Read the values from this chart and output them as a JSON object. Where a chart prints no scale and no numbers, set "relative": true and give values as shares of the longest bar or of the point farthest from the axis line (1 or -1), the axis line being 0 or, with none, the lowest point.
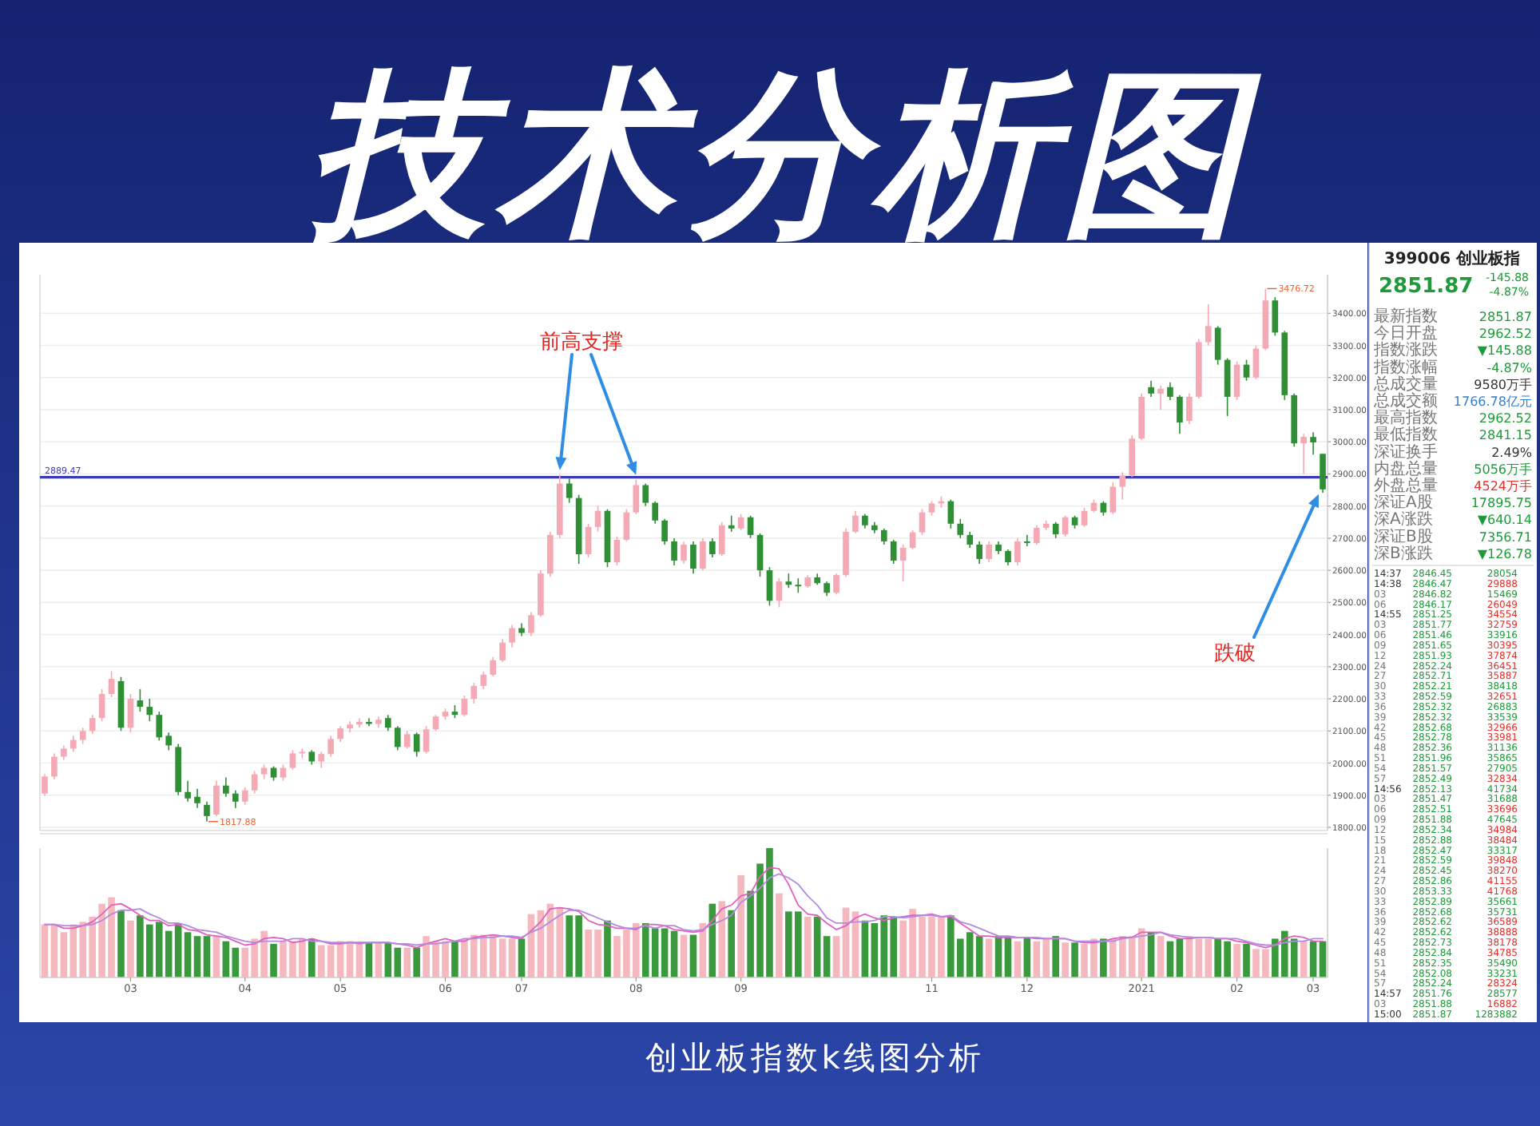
{
  "chart_data": [
    {
      "type": "candlestick",
      "title": "技术分析图",
      "categories": [
        null,
        null,
        null,
        null,
        null,
        null,
        null,
        null,
        null,
        null,
        null,
        null,
        null,
        null,
        null,
        null,
        null,
        null,
        null,
        null,
        null,
        null,
        null,
        null,
        null,
        null,
        null,
        null,
        null,
        null,
        null,
        null,
        null,
        null,
        null,
        null,
        null,
        null,
        null,
        null,
        null,
        null,
        null,
        null,
        null,
        null,
        null,
        null,
        null,
        null,
        null,
        null,
        null,
        null,
        null,
        null,
        null,
        null,
        null,
        null,
        null,
        null,
        null,
        null,
        null,
        null,
        null,
        null,
        null,
        null,
        null,
        null,
        null,
        null,
        null,
        null,
        null,
        null,
        null,
        null,
        null,
        null,
        null,
        null,
        null,
        null,
        null,
        null,
        null,
        null,
        null,
        null,
        null,
        null,
        null,
        null,
        null,
        null,
        null,
        null,
        null,
        null,
        null,
        null,
        null,
        null,
        null,
        null,
        null,
        null,
        null,
        null,
        null,
        null,
        null,
        null,
        null,
        null,
        null,
        null,
        null,
        null,
        null,
        null,
        null,
        null,
        null,
        null,
        null,
        null,
        null,
        null,
        null,
        null,
        null
      ],
      "ohlc": [
        [
          1905,
          1965,
          1898,
          1958
        ],
        [
          1958,
          2030,
          1950,
          2020
        ],
        [
          2020,
          2055,
          2010,
          2045
        ],
        [
          2045,
          2085,
          2035,
          2072
        ],
        [
          2072,
          2110,
          2060,
          2100
        ],
        [
          2100,
          2150,
          2090,
          2140
        ],
        [
          2140,
          2230,
          2130,
          2215
        ],
        [
          2215,
          2286,
          2205,
          2262
        ],
        [
          2255,
          2268,
          2100,
          2110
        ],
        [
          2110,
          2215,
          2095,
          2200
        ],
        [
          2195,
          2230,
          2160,
          2175
        ],
        [
          2175,
          2200,
          2130,
          2150
        ],
        [
          2150,
          2160,
          2070,
          2080
        ],
        [
          2085,
          2095,
          2040,
          2055
        ],
        [
          2050,
          2060,
          1900,
          1910
        ],
        [
          1910,
          1945,
          1880,
          1890
        ],
        [
          1895,
          1920,
          1860,
          1875
        ],
        [
          1870,
          1880,
          1817.88,
          1835
        ],
        [
          1840,
          1945,
          1835,
          1930
        ],
        [
          1930,
          1955,
          1895,
          1905
        ],
        [
          1905,
          1915,
          1860,
          1880
        ],
        [
          1880,
          1925,
          1870,
          1915
        ],
        [
          1915,
          1975,
          1905,
          1965
        ],
        [
          1965,
          1995,
          1950,
          1985
        ],
        [
          1985,
          1990,
          1945,
          1955
        ],
        [
          1955,
          1995,
          1945,
          1985
        ],
        [
          1985,
          2040,
          1980,
          2030
        ],
        [
          2030,
          2045,
          2015,
          2035
        ],
        [
          2035,
          2040,
          1995,
          2005
        ],
        [
          2005,
          2035,
          1985,
          2028
        ],
        [
          2028,
          2085,
          2020,
          2075
        ],
        [
          2075,
          2115,
          2065,
          2108
        ],
        [
          2108,
          2130,
          2095,
          2120
        ],
        [
          2120,
          2140,
          2110,
          2128
        ],
        [
          2128,
          2140,
          2115,
          2122
        ],
        [
          2122,
          2145,
          2110,
          2135
        ],
        [
          2140,
          2150,
          2100,
          2110
        ],
        [
          2110,
          2115,
          2040,
          2050
        ],
        [
          2050,
          2100,
          2045,
          2090
        ],
        [
          2090,
          2095,
          2020,
          2035
        ],
        [
          2035,
          2115,
          2030,
          2105
        ],
        [
          2105,
          2150,
          2100,
          2145
        ],
        [
          2145,
          2170,
          2135,
          2160
        ],
        [
          2160,
          2180,
          2140,
          2150
        ],
        [
          2150,
          2210,
          2145,
          2200
        ],
        [
          2200,
          2250,
          2185,
          2240
        ],
        [
          2240,
          2285,
          2230,
          2275
        ],
        [
          2275,
          2330,
          2270,
          2320
        ],
        [
          2320,
          2385,
          2315,
          2375
        ],
        [
          2375,
          2430,
          2360,
          2420
        ],
        [
          2420,
          2435,
          2395,
          2405
        ],
        [
          2405,
          2470,
          2395,
          2460
        ],
        [
          2460,
          2600,
          2455,
          2590
        ],
        [
          2590,
          2720,
          2580,
          2710
        ],
        [
          2710,
          2897,
          2700,
          2870
        ],
        [
          2870,
          2885,
          2810,
          2825
        ],
        [
          2825,
          2835,
          2620,
          2650
        ],
        [
          2650,
          2745,
          2640,
          2735
        ],
        [
          2735,
          2800,
          2720,
          2785
        ],
        [
          2785,
          2790,
          2610,
          2625
        ],
        [
          2625,
          2705,
          2615,
          2695
        ],
        [
          2695,
          2790,
          2690,
          2780
        ],
        [
          2780,
          2882,
          2775,
          2865
        ],
        [
          2865,
          2870,
          2800,
          2810
        ],
        [
          2810,
          2815,
          2745,
          2755
        ],
        [
          2755,
          2760,
          2680,
          2690
        ],
        [
          2690,
          2700,
          2615,
          2630
        ],
        [
          2630,
          2690,
          2620,
          2680
        ],
        [
          2680,
          2690,
          2590,
          2605
        ],
        [
          2605,
          2700,
          2600,
          2690
        ],
        [
          2690,
          2700,
          2640,
          2650
        ],
        [
          2650,
          2750,
          2645,
          2740
        ],
        [
          2740,
          2770,
          2720,
          2730
        ],
        [
          2730,
          2775,
          2725,
          2765
        ],
        [
          2765,
          2770,
          2700,
          2710
        ],
        [
          2710,
          2715,
          2580,
          2600
        ],
        [
          2600,
          2610,
          2490,
          2505
        ],
        [
          2505,
          2575,
          2485,
          2565
        ],
        [
          2565,
          2590,
          2545,
          2555
        ],
        [
          2555,
          2575,
          2530,
          2550
        ],
        [
          2550,
          2585,
          2545,
          2578
        ],
        [
          2578,
          2590,
          2555,
          2560
        ],
        [
          2560,
          2565,
          2520,
          2530
        ],
        [
          2530,
          2590,
          2525,
          2585
        ],
        [
          2585,
          2730,
          2580,
          2720
        ],
        [
          2720,
          2785,
          2715,
          2770
        ],
        [
          2770,
          2775,
          2730,
          2740
        ],
        [
          2740,
          2750,
          2715,
          2725
        ],
        [
          2725,
          2730,
          2680,
          2690
        ],
        [
          2690,
          2695,
          2620,
          2630
        ],
        [
          2630,
          2680,
          2565,
          2670
        ],
        [
          2670,
          2725,
          2665,
          2718
        ],
        [
          2718,
          2790,
          2710,
          2780
        ],
        [
          2780,
          2815,
          2770,
          2808
        ],
        [
          2808,
          2830,
          2795,
          2815
        ],
        [
          2815,
          2820,
          2730,
          2745
        ],
        [
          2745,
          2760,
          2700,
          2710
        ],
        [
          2710,
          2720,
          2670,
          2680
        ],
        [
          2680,
          2690,
          2620,
          2635
        ],
        [
          2635,
          2690,
          2625,
          2680
        ],
        [
          2680,
          2690,
          2650,
          2660
        ],
        [
          2660,
          2665,
          2615,
          2625
        ],
        [
          2625,
          2700,
          2615,
          2690
        ],
        [
          2690,
          2710,
          2675,
          2685
        ],
        [
          2685,
          2740,
          2680,
          2732
        ],
        [
          2732,
          2755,
          2725,
          2745
        ],
        [
          2745,
          2750,
          2700,
          2712
        ],
        [
          2712,
          2770,
          2705,
          2765
        ],
        [
          2765,
          2770,
          2730,
          2740
        ],
        [
          2740,
          2795,
          2735,
          2785
        ],
        [
          2785,
          2820,
          2780,
          2810
        ],
        [
          2810,
          2815,
          2770,
          2780
        ],
        [
          2780,
          2875,
          2775,
          2860
        ],
        [
          2860,
          2905,
          2820,
          2895
        ],
        [
          2895,
          3020,
          2890,
          3010
        ],
        [
          3010,
          3150,
          3005,
          3140
        ],
        [
          3170,
          3190,
          3140,
          3150
        ],
        [
          3150,
          3175,
          3100,
          3165
        ],
        [
          3170,
          3185,
          3130,
          3140
        ],
        [
          3140,
          3145,
          3025,
          3060
        ],
        [
          3065,
          3150,
          3055,
          3140
        ],
        [
          3140,
          3320,
          3135,
          3310
        ],
        [
          3310,
          3428,
          3300,
          3360
        ],
        [
          3355,
          3360,
          3240,
          3255
        ],
        [
          3255,
          3260,
          3080,
          3140
        ],
        [
          3140,
          3250,
          3130,
          3240
        ],
        [
          3240,
          3255,
          3190,
          3200
        ],
        [
          3200,
          3300,
          3195,
          3290
        ],
        [
          3290,
          3476.72,
          3285,
          3440
        ],
        [
          3440,
          3450,
          3330,
          3340
        ],
        [
          3340,
          3345,
          3130,
          3145
        ],
        [
          3145,
          3150,
          2985,
          2995
        ],
        [
          2995,
          3025,
          2900,
          3015
        ],
        [
          3015,
          3030,
          2960,
          2998
        ],
        [
          2962.52,
          2962.52,
          2841.15,
          2851.87
        ]
      ],
      "colors": [
        "#f4a9b5",
        "#f4a9b5",
        "#f4a9b5",
        "#f4a9b5",
        "#f4a9b5",
        "#f4a9b5",
        "#f4a9b5",
        "#f4a9b5",
        "#2f8f35",
        "#f4a9b5",
        "#2f8f35",
        "#2f8f35",
        "#2f8f35",
        "#2f8f35",
        "#2f8f35",
        "#2f8f35",
        "#2f8f35",
        "#2f8f35",
        "#f4a9b5",
        "#2f8f35",
        "#2f8f35",
        "#f4a9b5",
        "#f4a9b5",
        "#f4a9b5",
        "#2f8f35",
        "#f4a9b5",
        "#f4a9b5",
        "#f4a9b5",
        "#2f8f35",
        "#f4a9b5",
        "#f4a9b5",
        "#f4a9b5",
        "#f4a9b5",
        "#f4a9b5",
        "#2f8f35",
        "#f4a9b5",
        "#2f8f35",
        "#2f8f35",
        "#f4a9b5",
        "#2f8f35",
        "#f4a9b5",
        "#f4a9b5",
        "#f4a9b5",
        "#2f8f35",
        "#f4a9b5",
        "#f4a9b5",
        "#f4a9b5",
        "#f4a9b5",
        "#f4a9b5",
        "#f4a9b5",
        "#2f8f35",
        "#f4a9b5",
        "#f4a9b5",
        "#f4a9b5",
        "#f4a9b5",
        "#2f8f35",
        "#2f8f35",
        "#f4a9b5",
        "#f4a9b5",
        "#2f8f35",
        "#f4a9b5",
        "#f4a9b5",
        "#f4a9b5",
        "#2f8f35",
        "#2f8f35",
        "#2f8f35",
        "#2f8f35",
        "#f4a9b5",
        "#2f8f35",
        "#f4a9b5",
        "#2f8f35",
        "#f4a9b5",
        "#2f8f35",
        "#f4a9b5",
        "#2f8f35",
        "#2f8f35",
        "#2f8f35",
        "#f4a9b5",
        "#2f8f35",
        "#2f8f35",
        "#f4a9b5",
        "#2f8f35",
        "#2f8f35",
        "#f4a9b5",
        "#f4a9b5",
        "#f4a9b5",
        "#2f8f35",
        "#2f8f35",
        "#2f8f35",
        "#2f8f35",
        "#f4a9b5",
        "#f4a9b5",
        "#f4a9b5",
        "#f4a9b5",
        "#f4a9b5",
        "#2f8f35",
        "#2f8f35",
        "#2f8f35",
        "#2f8f35",
        "#f4a9b5",
        "#2f8f35",
        "#2f8f35",
        "#f4a9b5",
        "#2f8f35",
        "#f4a9b5",
        "#f4a9b5",
        "#2f8f35",
        "#f4a9b5",
        "#2f8f35",
        "#f4a9b5",
        "#f4a9b5",
        "#2f8f35",
        "#f4a9b5",
        "#f4a9b5",
        "#f4a9b5",
        "#f4a9b5",
        "#2f8f35",
        "#f4a9b5",
        "#2f8f35",
        "#2f8f35",
        "#f4a9b5",
        "#f4a9b5",
        "#f4a9b5",
        "#2f8f35",
        "#2f8f35",
        "#f4a9b5",
        "#2f8f35",
        "#f4a9b5",
        "#f4a9b5",
        "#2f8f35",
        "#2f8f35",
        "#2f8f35",
        "#f4a9b5",
        "#2f8f35",
        "#2f8f35"
      ],
      "ylim": [
        1790,
        3520
      ],
      "yticks": [
        {
          "value": 1800,
          "label": "1800.00"
        },
        {
          "value": 1900,
          "label": "1900.00"
        },
        {
          "value": 2000,
          "label": "2000.00"
        },
        {
          "value": 2100,
          "label": "2100.00"
        },
        {
          "value": 2200,
          "label": "2200.00"
        },
        {
          "value": 2300,
          "label": "2300.00"
        },
        {
          "value": 2400,
          "label": "2400.00"
        },
        {
          "value": 2500,
          "label": "2500.00"
        },
        {
          "value": 2600,
          "label": "2600.00"
        },
        {
          "value": 2700,
          "label": "2700.00"
        },
        {
          "value": 2800,
          "label": "2800.00"
        },
        {
          "value": 2900,
          "label": "2900.00"
        },
        {
          "value": 3000,
          "label": "3000.00"
        },
        {
          "value": 3100,
          "label": "3100.00"
        },
        {
          "value": 3200,
          "label": "3200.00"
        },
        {
          "value": 3300,
          "label": "3300.00"
        },
        {
          "value": 3400,
          "label": "3400.00"
        }
      ],
      "grid": "y",
      "tick_labels": "y",
      "ref_lines": [
        {
          "axis": "y",
          "value": 2889.47,
          "label": "2889.47",
          "color": "#3a3ab4"
        }
      ],
      "annotations": [
        "前高支撑",
        "跌破",
        "创业板指数k线图分析",
        "3476.72",
        "1817.88"
      ]
    },
    {
      "type": "bar",
      "relative": true,
      "tick_labels": "x",
      "categories": [
        null,
        null,
        null,
        null,
        null,
        null,
        null,
        null,
        null,
        "03",
        null,
        null,
        null,
        null,
        null,
        null,
        null,
        null,
        null,
        null,
        null,
        "04",
        null,
        null,
        null,
        null,
        null,
        null,
        null,
        null,
        null,
        "05",
        null,
        null,
        null,
        null,
        null,
        null,
        null,
        null,
        null,
        null,
        "06",
        null,
        null,
        null,
        null,
        null,
        null,
        null,
        "07",
        null,
        null,
        null,
        null,
        null,
        null,
        null,
        null,
        null,
        null,
        null,
        "08",
        null,
        null,
        null,
        null,
        null,
        null,
        null,
        null,
        null,
        null,
        "09",
        null,
        null,
        null,
        null,
        null,
        null,
        null,
        null,
        null,
        null,
        null,
        null,
        null,
        null,
        null,
        null,
        null,
        null,
        null,
        "11",
        null,
        null,
        null,
        null,
        null,
        null,
        null,
        null,
        null,
        "12",
        null,
        null,
        null,
        null,
        null,
        null,
        null,
        null,
        null,
        null,
        null,
        "2021",
        null,
        null,
        null,
        null,
        null,
        null,
        null,
        null,
        null,
        "02",
        null,
        null,
        null,
        null,
        null,
        null,
        null,
        "03",
        null
      ],
      "series": [
        {
          "type": "bar",
          "colors": [
            "#f5b8be",
            "#f5b8be",
            "#f5b8be",
            "#f5b8be",
            "#f5b8be",
            "#f5b8be",
            "#f5b8be",
            "#f5b8be",
            "#3a993c",
            "#f5b8be",
            "#3a993c",
            "#3a993c",
            "#3a993c",
            "#3a993c",
            "#3a993c",
            "#3a993c",
            "#3a993c",
            "#3a993c",
            "#f5b8be",
            "#3a993c",
            "#3a993c",
            "#f5b8be",
            "#f5b8be",
            "#f5b8be",
            "#3a993c",
            "#f5b8be",
            "#f5b8be",
            "#f5b8be",
            "#3a993c",
            "#f5b8be",
            "#f5b8be",
            "#f5b8be",
            "#f5b8be",
            "#f5b8be",
            "#3a993c",
            "#f5b8be",
            "#3a993c",
            "#3a993c",
            "#f5b8be",
            "#3a993c",
            "#f5b8be",
            "#f5b8be",
            "#f5b8be",
            "#3a993c",
            "#f5b8be",
            "#f5b8be",
            "#f5b8be",
            "#f5b8be",
            "#f5b8be",
            "#f5b8be",
            "#3a993c",
            "#f5b8be",
            "#f5b8be",
            "#f5b8be",
            "#f5b8be",
            "#3a993c",
            "#3a993c",
            "#f5b8be",
            "#f5b8be",
            "#3a993c",
            "#f5b8be",
            "#f5b8be",
            "#f5b8be",
            "#3a993c",
            "#3a993c",
            "#3a993c",
            "#3a993c",
            "#f5b8be",
            "#3a993c",
            "#f5b8be",
            "#3a993c",
            "#f5b8be",
            "#3a993c",
            "#f5b8be",
            "#3a993c",
            "#3a993c",
            "#3a993c",
            "#f5b8be",
            "#3a993c",
            "#3a993c",
            "#f5b8be",
            "#3a993c",
            "#3a993c",
            "#f5b8be",
            "#f5b8be",
            "#f5b8be",
            "#3a993c",
            "#3a993c",
            "#3a993c",
            "#3a993c",
            "#f5b8be",
            "#f5b8be",
            "#f5b8be",
            "#f5b8be",
            "#f5b8be",
            "#3a993c",
            "#3a993c",
            "#3a993c",
            "#3a993c",
            "#f5b8be",
            "#3a993c",
            "#3a993c",
            "#f5b8be",
            "#3a993c",
            "#f5b8be",
            "#f5b8be",
            "#3a993c",
            "#f5b8be",
            "#3a993c",
            "#f5b8be",
            "#f5b8be",
            "#3a993c",
            "#f5b8be",
            "#f5b8be",
            "#f5b8be",
            "#f5b8be",
            "#3a993c",
            "#f5b8be",
            "#3a993c",
            "#3a993c",
            "#f5b8be",
            "#f5b8be",
            "#f5b8be",
            "#3a993c",
            "#3a993c",
            "#f5b8be",
            "#3a993c",
            "#f5b8be",
            "#f5b8be",
            "#3a993c",
            "#3a993c",
            "#3a993c",
            "#f5b8be",
            "#3a993c",
            "#3a993c"
          ],
          "values": [
            0.41,
            0.41,
            0.35,
            0.41,
            0.43,
            0.47,
            0.57,
            0.62,
            0.52,
            0.44,
            0.48,
            0.41,
            0.43,
            0.36,
            0.42,
            0.35,
            0.32,
            0.32,
            0.32,
            0.28,
            0.23,
            0.23,
            0.3,
            0.36,
            0.26,
            0.28,
            0.28,
            0.3,
            0.3,
            0.25,
            0.25,
            0.28,
            0.28,
            0.26,
            0.27,
            0.27,
            0.27,
            0.23,
            0.23,
            0.23,
            0.32,
            0.28,
            0.28,
            0.28,
            0.3,
            0.33,
            0.33,
            0.33,
            0.3,
            0.3,
            0.3,
            0.49,
            0.52,
            0.57,
            0.54,
            0.48,
            0.48,
            0.37,
            0.37,
            0.44,
            0.32,
            0.37,
            0.42,
            0.42,
            0.38,
            0.38,
            0.36,
            0.33,
            0.33,
            0.42,
            0.57,
            0.59,
            0.52,
            0.79,
            0.67,
            0.88,
            1,
            0.65,
            0.51,
            0.51,
            0.47,
            0.47,
            0.32,
            0.32,
            0.54,
            0.51,
            0.44,
            0.42,
            0.48,
            0.47,
            0.44,
            0.53,
            0.47,
            0.47,
            0.47,
            0.48,
            0.3,
            0.35,
            0.32,
            0.3,
            0.32,
            0.32,
            0.28,
            0.31,
            0.28,
            0.3,
            0.32,
            0.27,
            0.27,
            0.26,
            0.3,
            0.3,
            0.3,
            0.32,
            0.32,
            0.38,
            0.35,
            0.32,
            0.28,
            0.3,
            0.32,
            0.3,
            0.3,
            0.3,
            0.28,
            0.26,
            0.26,
            0.22,
            0.22,
            0.3,
            0.36,
            0.3,
            0.28,
            0.28,
            0.28
          ]
        },
        {
          "type": "line",
          "color": "#e060c0",
          "values": [
            0.41,
            0.41,
            0.38,
            0.38,
            0.4,
            0.43,
            0.49,
            0.56,
            0.57,
            0.53,
            0.48,
            0.44,
            0.44,
            0.4,
            0.41,
            0.37,
            0.36,
            0.33,
            0.32,
            0.31,
            0.28,
            0.25,
            0.26,
            0.3,
            0.31,
            0.3,
            0.27,
            0.28,
            0.3,
            0.28,
            0.26,
            0.26,
            0.27,
            0.27,
            0.27,
            0.27,
            0.27,
            0.26,
            0.25,
            0.23,
            0.26,
            0.28,
            0.3,
            0.28,
            0.28,
            0.31,
            0.32,
            0.33,
            0.32,
            0.31,
            0.3,
            0.36,
            0.43,
            0.53,
            0.54,
            0.53,
            0.51,
            0.44,
            0.41,
            0.4,
            0.38,
            0.38,
            0.37,
            0.41,
            0.41,
            0.4,
            0.37,
            0.36,
            0.35,
            0.36,
            0.44,
            0.53,
            0.56,
            0.63,
            0.65,
            0.78,
            0.85,
            0.84,
            0.72,
            0.56,
            0.49,
            0.48,
            0.42,
            0.37,
            0.4,
            0.46,
            0.49,
            0.46,
            0.44,
            0.46,
            0.47,
            0.48,
            0.48,
            0.49,
            0.47,
            0.47,
            0.42,
            0.37,
            0.32,
            0.32,
            0.31,
            0.31,
            0.31,
            0.31,
            0.3,
            0.3,
            0.3,
            0.3,
            0.28,
            0.27,
            0.27,
            0.28,
            0.3,
            0.31,
            0.31,
            0.35,
            0.35,
            0.35,
            0.32,
            0.3,
            0.3,
            0.31,
            0.31,
            0.3,
            0.3,
            0.28,
            0.27,
            0.25,
            0.23,
            0.25,
            0.3,
            0.32,
            0.31,
            0.28,
            0.28
          ]
        },
        {
          "type": "line",
          "color": "#b48ae0",
          "values": [
            0.41,
            0.41,
            0.4,
            0.4,
            0.4,
            0.41,
            0.44,
            0.49,
            0.52,
            0.52,
            0.53,
            0.49,
            0.46,
            0.42,
            0.42,
            0.4,
            0.37,
            0.36,
            0.35,
            0.32,
            0.3,
            0.28,
            0.27,
            0.28,
            0.28,
            0.28,
            0.3,
            0.3,
            0.28,
            0.28,
            0.27,
            0.27,
            0.27,
            0.26,
            0.27,
            0.27,
            0.27,
            0.26,
            0.26,
            0.25,
            0.26,
            0.26,
            0.27,
            0.28,
            0.3,
            0.3,
            0.31,
            0.31,
            0.32,
            0.32,
            0.31,
            0.35,
            0.38,
            0.43,
            0.48,
            0.52,
            0.52,
            0.49,
            0.46,
            0.43,
            0.4,
            0.38,
            0.38,
            0.4,
            0.38,
            0.4,
            0.4,
            0.37,
            0.36,
            0.37,
            0.41,
            0.44,
            0.48,
            0.58,
            0.63,
            0.69,
            0.77,
            0.8,
            0.77,
            0.72,
            0.63,
            0.56,
            0.46,
            0.42,
            0.42,
            0.43,
            0.43,
            0.44,
            0.47,
            0.47,
            0.46,
            0.47,
            0.48,
            0.48,
            0.47,
            0.48,
            0.43,
            0.41,
            0.38,
            0.35,
            0.32,
            0.32,
            0.31,
            0.31,
            0.31,
            0.3,
            0.3,
            0.3,
            0.28,
            0.28,
            0.28,
            0.28,
            0.28,
            0.3,
            0.31,
            0.32,
            0.33,
            0.35,
            0.33,
            0.32,
            0.31,
            0.31,
            0.31,
            0.3,
            0.3,
            0.3,
            0.28,
            0.26,
            0.25,
            0.25,
            0.27,
            0.28,
            0.28,
            0.3,
            0.3
          ]
        }
      ]
    },
    {
      "type": "other",
      "title": "399006 创业板指",
      "annotations": [
        "2851.87 -145.88 -4.87%",
        "最新指数 2851.87",
        "今日开盘 2962.52",
        "指数涨跌 ▼145.88",
        "指数涨幅 -4.87%",
        "总成交量 9580万手",
        "总成交额 1766.78亿元",
        "最高指数 2962.52",
        "最低指数 2841.15",
        "深证换手 2.49%",
        "内盘总量 5056万手",
        "外盘总量 4524万手",
        "深证A股 17895.75",
        "深A涨跌 ▼640.14",
        "深证B股 7356.71",
        "深B涨跌 ▼126.78",
        "14:37 2846.45 28054",
        "14:38 2846.47 29888",
        "03 2846.82 15469",
        "06 2846.17 26049",
        "14:55 2851.25 34554",
        "03 2851.77 32759",
        "06 2851.46 33916",
        "09 2851.65 30395",
        "12 2851.93 37874",
        "24 2852.24 36451",
        "27 2852.71 35887",
        "30 2852.21 38418",
        "33 2852.59 32651",
        "36 2852.32 26883",
        "39 2852.32 33539",
        "42 2852.68 32966",
        "45 2852.78 33981",
        "48 2852.36 31136",
        "51 2851.96 35865",
        "54 2851.57 27905",
        "57 2852.49 32834",
        "14:56 2852.13 41734",
        "03 2851.47 31688",
        "06 2852.51 33696",
        "09 2851.88 47645",
        "12 2852.34 34984",
        "15 2852.88 38484",
        "18 2852.47 33317",
        "21 2852.59 39848",
        "24 2852.45 38270",
        "27 2852.86 41155",
        "30 2853.33 41768",
        "33 2852.89 35661",
        "36 2852.68 35731",
        "39 2852.62 36589",
        "42 2852.62 38888",
        "45 2852.73 38178",
        "48 2852.84 34785",
        "51 2852.35 35490",
        "54 2852.08 33231",
        "57 2852.24 28324",
        "14:57 2851.76 28577",
        "03 2851.88 16882",
        "15:00 2851.87 1283882"
      ],
      "colors": [
        [
          "#1e9a3a",
          "#1e9a3a",
          "#1e9a3a"
        ],
        [
          "#777777",
          "#1e9a3a"
        ],
        [
          "#777777",
          "#1e9a3a"
        ],
        [
          "#777777",
          "#1e9a3a"
        ],
        [
          "#777777",
          "#1e9a3a"
        ],
        [
          "#777777",
          "#333333"
        ],
        [
          "#777777",
          "#2f7fd6"
        ],
        [
          "#777777",
          "#1e9a3a"
        ],
        [
          "#777777",
          "#1e9a3a"
        ],
        [
          "#777777",
          "#333333"
        ],
        [
          "#777777",
          "#1e9a3a"
        ],
        [
          "#777777",
          "#e0302a"
        ],
        [
          "#777777",
          "#1e9a3a"
        ],
        [
          "#777777",
          "#1e9a3a"
        ],
        [
          "#777777",
          "#1e9a3a"
        ],
        [
          "#777777",
          "#1e9a3a"
        ],
        [
          "#333333",
          "#1e9a3a",
          "#1e9a3a"
        ],
        [
          "#333333",
          "#1e9a3a",
          "#e0302a"
        ],
        [
          "#777777",
          "#1e9a3a",
          "#1e9a3a"
        ],
        [
          "#777777",
          "#1e9a3a",
          "#e0302a"
        ],
        [
          "#333333",
          "#1e9a3a",
          "#e0302a"
        ],
        [
          "#777777",
          "#1e9a3a",
          "#e0302a"
        ],
        [
          "#777777",
          "#1e9a3a",
          "#1e9a3a"
        ],
        [
          "#777777",
          "#1e9a3a",
          "#e0302a"
        ],
        [
          "#777777",
          "#1e9a3a",
          "#e0302a"
        ],
        [
          "#777777",
          "#1e9a3a",
          "#e0302a"
        ],
        [
          "#777777",
          "#1e9a3a",
          "#e0302a"
        ],
        [
          "#777777",
          "#1e9a3a",
          "#1e9a3a"
        ],
        [
          "#777777",
          "#1e9a3a",
          "#e0302a"
        ],
        [
          "#777777",
          "#1e9a3a",
          "#1e9a3a"
        ],
        [
          "#777777",
          "#1e9a3a",
          "#1e9a3a"
        ],
        [
          "#777777",
          "#1e9a3a",
          "#e0302a"
        ],
        [
          "#777777",
          "#1e9a3a",
          "#e0302a"
        ],
        [
          "#777777",
          "#1e9a3a",
          "#1e9a3a"
        ],
        [
          "#777777",
          "#1e9a3a",
          "#1e9a3a"
        ],
        [
          "#777777",
          "#1e9a3a",
          "#1e9a3a"
        ],
        [
          "#777777",
          "#1e9a3a",
          "#e0302a"
        ],
        [
          "#333333",
          "#1e9a3a",
          "#1e9a3a"
        ],
        [
          "#777777",
          "#1e9a3a",
          "#1e9a3a"
        ],
        [
          "#777777",
          "#1e9a3a",
          "#e0302a"
        ],
        [
          "#777777",
          "#1e9a3a",
          "#1e9a3a"
        ],
        [
          "#777777",
          "#1e9a3a",
          "#e0302a"
        ],
        [
          "#777777",
          "#1e9a3a",
          "#e0302a"
        ],
        [
          "#777777",
          "#1e9a3a",
          "#1e9a3a"
        ],
        [
          "#777777",
          "#1e9a3a",
          "#e0302a"
        ],
        [
          "#777777",
          "#1e9a3a",
          "#e0302a"
        ],
        [
          "#777777",
          "#1e9a3a",
          "#e0302a"
        ],
        [
          "#777777",
          "#1e9a3a",
          "#e0302a"
        ],
        [
          "#777777",
          "#1e9a3a",
          "#1e9a3a"
        ],
        [
          "#777777",
          "#1e9a3a",
          "#1e9a3a"
        ],
        [
          "#777777",
          "#1e9a3a",
          "#e0302a"
        ],
        [
          "#777777",
          "#1e9a3a",
          "#e0302a"
        ],
        [
          "#777777",
          "#1e9a3a",
          "#e0302a"
        ],
        [
          "#777777",
          "#1e9a3a",
          "#e0302a"
        ],
        [
          "#777777",
          "#1e9a3a",
          "#1e9a3a"
        ],
        [
          "#777777",
          "#1e9a3a",
          "#1e9a3a"
        ],
        [
          "#777777",
          "#1e9a3a",
          "#e0302a"
        ],
        [
          "#333333",
          "#1e9a3a",
          "#1e9a3a"
        ],
        [
          "#777777",
          "#1e9a3a",
          "#e0302a"
        ],
        [
          "#333333",
          "#1e9a3a",
          "#1e9a3a"
        ]
      ]
    }
  ]
}
